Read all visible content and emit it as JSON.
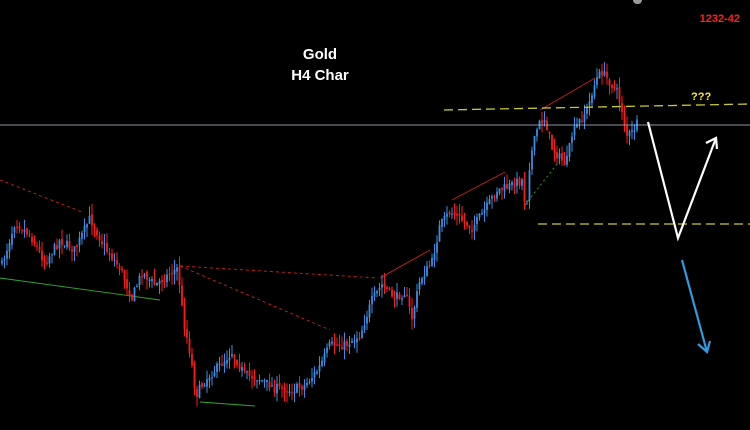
{
  "title_lines": [
    "Gold",
    "H4 Char"
  ],
  "price_label": "1232-42",
  "question_label": "???",
  "colors": {
    "background": "#000000",
    "bull_candle": "#3a8ee6",
    "bear_candle": "#ff1a1a",
    "horizontal_line": "#b8c8d8",
    "dashed_level": "#c9c92a",
    "red_trendline": "#d02020",
    "green_trendline": "#2fa82f",
    "white_arrow": "#ffffff",
    "blue_arrow": "#2f9be0"
  },
  "chart_data": {
    "type": "candlestick",
    "title": "Gold H4 Char",
    "price_tag": "1232-42",
    "levels": [
      {
        "kind": "solid-horizontal",
        "color": "#b8c8d8",
        "value": 1232
      },
      {
        "kind": "dashed-resistance",
        "color": "#c9c92a",
        "start_index": 200,
        "end_index": 270,
        "value_start": 1237,
        "value_end": 1239
      },
      {
        "kind": "dashed-support",
        "color": "#c9c92a",
        "start_index": 195,
        "end_index": 270,
        "value": 1199
      }
    ],
    "projected_path": [
      {
        "style": "white-arrow",
        "from": [
          234,
          1232
        ],
        "via": [
          244,
          1200
        ],
        "to": [
          260,
          1227
        ]
      },
      {
        "style": "blue-arrow",
        "from": [
          246,
          1194
        ],
        "to": [
          256,
          1166
        ]
      }
    ],
    "annotations": [
      "???"
    ]
  }
}
